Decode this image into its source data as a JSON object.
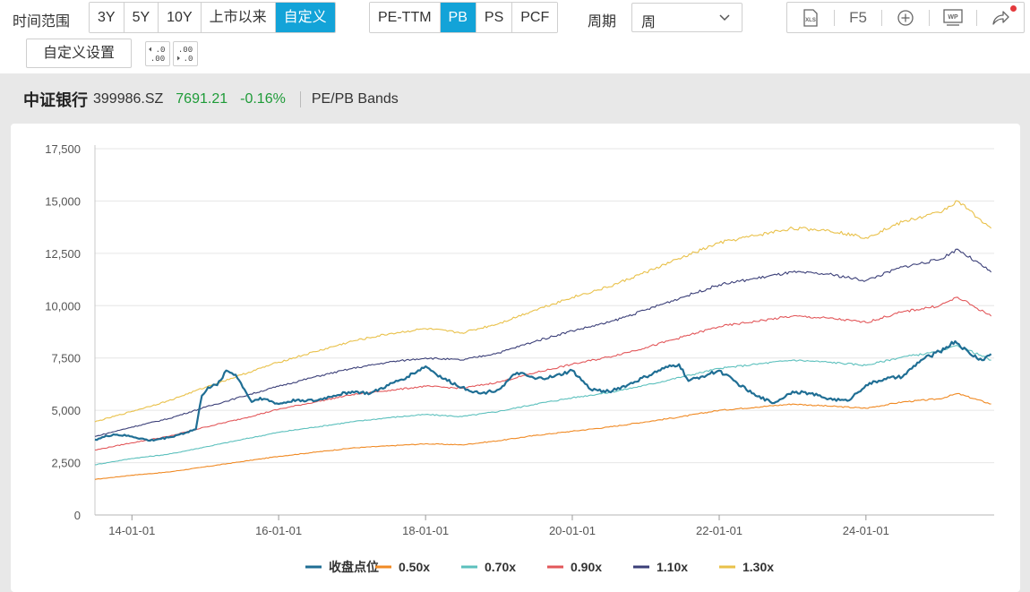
{
  "toolbar": {
    "range_label": "时间范围",
    "range_options": [
      "3Y",
      "5Y",
      "10Y",
      "上市以来",
      "自定义"
    ],
    "range_active": "自定义",
    "metric_options": [
      "PE-TTM",
      "PB",
      "PS",
      "PCF"
    ],
    "metric_active": "PB",
    "period_label": "周期",
    "period_value": "周",
    "f5_label": "F5",
    "xls_label": "XLS",
    "wp_label": "WP",
    "custom_settings_label": "自定义设置",
    "decimal_dec_label": ".00",
    "decimal_inc_label": ".00"
  },
  "header": {
    "name": "中证银行",
    "code": "399986.SZ",
    "price": "7691.21",
    "change": "-0.16%",
    "chart_type": "PE/PB Bands"
  },
  "colors": {
    "accent": "#13a3d8",
    "up_down_green": "#1e9b38",
    "close": "#1f6e94",
    "b050": "#f08a24",
    "b070": "#5cc0bd",
    "b090": "#e2575a",
    "b110": "#3b3f78",
    "b130": "#e9c14a"
  },
  "chart_data": {
    "type": "line",
    "title": "",
    "xlabel": "",
    "ylabel": "",
    "ylim": [
      0,
      17500
    ],
    "yticks": [
      0,
      2500,
      5000,
      7500,
      10000,
      12500,
      15000,
      17500
    ],
    "ytick_labels": [
      "0",
      "2,500",
      "5,000",
      "7,500",
      "10,000",
      "12,500",
      "15,000",
      "17,500"
    ],
    "xlim": [
      "2013-07-01",
      "2025-09-30"
    ],
    "xticks": [
      "2014-01-01",
      "2016-01-01",
      "2018-01-01",
      "2020-01-01",
      "2022-01-01",
      "2024-01-01"
    ],
    "xtick_labels": [
      "14-01-01",
      "16-01-01",
      "18-01-01",
      "20-01-01",
      "22-01-01",
      "24-01-01"
    ],
    "grid": "horizontal",
    "legend_position": "bottom-center",
    "series": [
      {
        "name": "收盘点位",
        "color": "#1f6e94",
        "points": [
          [
            "2013-07-01",
            3600
          ],
          [
            "2013-10-01",
            3850
          ],
          [
            "2014-01-01",
            3750
          ],
          [
            "2014-04-01",
            3550
          ],
          [
            "2014-07-01",
            3700
          ],
          [
            "2014-10-01",
            3950
          ],
          [
            "2014-11-15",
            4100
          ],
          [
            "2014-12-15",
            5700
          ],
          [
            "2015-01-15",
            6100
          ],
          [
            "2015-03-01",
            6200
          ],
          [
            "2015-04-15",
            6900
          ],
          [
            "2015-06-01",
            6700
          ],
          [
            "2015-07-15",
            6000
          ],
          [
            "2015-08-20",
            5400
          ],
          [
            "2015-10-01",
            5600
          ],
          [
            "2016-01-01",
            5300
          ],
          [
            "2016-04-01",
            5500
          ],
          [
            "2016-07-01",
            5450
          ],
          [
            "2016-10-01",
            5700
          ],
          [
            "2017-01-01",
            5900
          ],
          [
            "2017-04-01",
            5800
          ],
          [
            "2017-07-01",
            6200
          ],
          [
            "2017-10-01",
            6600
          ],
          [
            "2018-01-01",
            7100
          ],
          [
            "2018-02-15",
            6800
          ],
          [
            "2018-04-01",
            6500
          ],
          [
            "2018-07-01",
            6100
          ],
          [
            "2018-10-01",
            5800
          ],
          [
            "2019-01-01",
            6000
          ],
          [
            "2019-04-01",
            6800
          ],
          [
            "2019-07-01",
            6500
          ],
          [
            "2019-10-01",
            6600
          ],
          [
            "2020-01-01",
            6900
          ],
          [
            "2020-04-01",
            6000
          ],
          [
            "2020-07-01",
            5900
          ],
          [
            "2020-10-01",
            6200
          ],
          [
            "2021-01-01",
            6600
          ],
          [
            "2021-04-01",
            7000
          ],
          [
            "2021-06-15",
            7200
          ],
          [
            "2021-08-01",
            6400
          ],
          [
            "2021-10-01",
            6600
          ],
          [
            "2022-01-01",
            6900
          ],
          [
            "2022-04-01",
            6300
          ],
          [
            "2022-07-01",
            5700
          ],
          [
            "2022-10-01",
            5350
          ],
          [
            "2023-01-01",
            5900
          ],
          [
            "2023-04-01",
            5800
          ],
          [
            "2023-07-01",
            5550
          ],
          [
            "2023-10-01",
            5450
          ],
          [
            "2024-01-01",
            6200
          ],
          [
            "2024-04-01",
            6500
          ],
          [
            "2024-07-01",
            6600
          ],
          [
            "2024-10-01",
            7400
          ],
          [
            "2025-01-01",
            7800
          ],
          [
            "2025-03-20",
            8300
          ],
          [
            "2025-06-01",
            7700
          ],
          [
            "2025-08-01",
            7400
          ],
          [
            "2025-09-15",
            7691
          ]
        ]
      },
      {
        "name": "0.50x",
        "color": "#f08a24",
        "points": [
          [
            "2013-07-01",
            1700
          ],
          [
            "2014-01-01",
            1900
          ],
          [
            "2014-07-01",
            2050
          ],
          [
            "2015-01-01",
            2300
          ],
          [
            "2015-07-01",
            2550
          ],
          [
            "2016-01-01",
            2800
          ],
          [
            "2016-07-01",
            3000
          ],
          [
            "2017-01-01",
            3200
          ],
          [
            "2017-07-01",
            3300
          ],
          [
            "2018-01-01",
            3400
          ],
          [
            "2018-07-01",
            3350
          ],
          [
            "2019-01-01",
            3550
          ],
          [
            "2019-07-01",
            3800
          ],
          [
            "2020-01-01",
            4000
          ],
          [
            "2020-07-01",
            4200
          ],
          [
            "2021-01-01",
            4450
          ],
          [
            "2021-07-01",
            4700
          ],
          [
            "2022-01-01",
            5000
          ],
          [
            "2022-07-01",
            5150
          ],
          [
            "2023-01-01",
            5300
          ],
          [
            "2023-07-01",
            5200
          ],
          [
            "2024-01-01",
            5100
          ],
          [
            "2024-07-01",
            5400
          ],
          [
            "2025-01-01",
            5550
          ],
          [
            "2025-04-01",
            5800
          ],
          [
            "2025-09-15",
            5300
          ]
        ]
      },
      {
        "name": "0.70x",
        "color": "#5cc0bd",
        "points": [
          [
            "2013-07-01",
            2400
          ],
          [
            "2014-01-01",
            2700
          ],
          [
            "2014-07-01",
            2900
          ],
          [
            "2015-01-01",
            3250
          ],
          [
            "2015-07-01",
            3600
          ],
          [
            "2016-01-01",
            3950
          ],
          [
            "2016-07-01",
            4200
          ],
          [
            "2017-01-01",
            4450
          ],
          [
            "2017-07-01",
            4650
          ],
          [
            "2018-01-01",
            4800
          ],
          [
            "2018-07-01",
            4700
          ],
          [
            "2019-01-01",
            4950
          ],
          [
            "2019-07-01",
            5300
          ],
          [
            "2020-01-01",
            5600
          ],
          [
            "2020-07-01",
            5850
          ],
          [
            "2021-01-01",
            6200
          ],
          [
            "2021-07-01",
            6600
          ],
          [
            "2022-01-01",
            7000
          ],
          [
            "2022-07-01",
            7200
          ],
          [
            "2023-01-01",
            7400
          ],
          [
            "2023-07-01",
            7300
          ],
          [
            "2024-01-01",
            7150
          ],
          [
            "2024-07-01",
            7550
          ],
          [
            "2025-01-01",
            7800
          ],
          [
            "2025-04-01",
            8100
          ],
          [
            "2025-09-15",
            7400
          ]
        ]
      },
      {
        "name": "0.90x",
        "color": "#e2575a",
        "points": [
          [
            "2013-07-01",
            3100
          ],
          [
            "2014-01-01",
            3450
          ],
          [
            "2014-07-01",
            3750
          ],
          [
            "2015-01-01",
            4200
          ],
          [
            "2015-07-01",
            4600
          ],
          [
            "2016-01-01",
            5050
          ],
          [
            "2016-07-01",
            5400
          ],
          [
            "2017-01-01",
            5750
          ],
          [
            "2017-07-01",
            5950
          ],
          [
            "2018-01-01",
            6150
          ],
          [
            "2018-07-01",
            6050
          ],
          [
            "2019-01-01",
            6350
          ],
          [
            "2019-07-01",
            6800
          ],
          [
            "2020-01-01",
            7200
          ],
          [
            "2020-07-01",
            7550
          ],
          [
            "2021-01-01",
            8000
          ],
          [
            "2021-07-01",
            8500
          ],
          [
            "2022-01-01",
            9000
          ],
          [
            "2022-07-01",
            9250
          ],
          [
            "2023-01-01",
            9500
          ],
          [
            "2023-07-01",
            9400
          ],
          [
            "2024-01-01",
            9200
          ],
          [
            "2024-07-01",
            9700
          ],
          [
            "2025-01-01",
            10000
          ],
          [
            "2025-04-01",
            10400
          ],
          [
            "2025-09-15",
            9500
          ]
        ]
      },
      {
        "name": "1.10x",
        "color": "#3b3f78",
        "points": [
          [
            "2013-07-01",
            3750
          ],
          [
            "2014-01-01",
            4200
          ],
          [
            "2014-07-01",
            4600
          ],
          [
            "2015-01-01",
            5150
          ],
          [
            "2015-07-01",
            5650
          ],
          [
            "2016-01-01",
            6150
          ],
          [
            "2016-07-01",
            6600
          ],
          [
            "2017-01-01",
            7000
          ],
          [
            "2017-07-01",
            7300
          ],
          [
            "2018-01-01",
            7500
          ],
          [
            "2018-07-01",
            7400
          ],
          [
            "2019-01-01",
            7750
          ],
          [
            "2019-07-01",
            8300
          ],
          [
            "2020-01-01",
            8800
          ],
          [
            "2020-07-01",
            9200
          ],
          [
            "2021-01-01",
            9800
          ],
          [
            "2021-07-01",
            10400
          ],
          [
            "2022-01-01",
            11000
          ],
          [
            "2022-07-01",
            11300
          ],
          [
            "2023-01-01",
            11600
          ],
          [
            "2023-07-01",
            11500
          ],
          [
            "2024-01-01",
            11200
          ],
          [
            "2024-07-01",
            11850
          ],
          [
            "2025-01-01",
            12200
          ],
          [
            "2025-04-01",
            12700
          ],
          [
            "2025-09-15",
            11600
          ]
        ]
      },
      {
        "name": "1.30x",
        "color": "#e9c14a",
        "points": [
          [
            "2013-07-01",
            4450
          ],
          [
            "2014-01-01",
            4950
          ],
          [
            "2014-07-01",
            5450
          ],
          [
            "2015-01-01",
            6100
          ],
          [
            "2015-07-01",
            6700
          ],
          [
            "2016-01-01",
            7300
          ],
          [
            "2016-07-01",
            7800
          ],
          [
            "2017-01-01",
            8300
          ],
          [
            "2017-07-01",
            8650
          ],
          [
            "2018-01-01",
            8900
          ],
          [
            "2018-07-01",
            8700
          ],
          [
            "2019-01-01",
            9150
          ],
          [
            "2019-07-01",
            9800
          ],
          [
            "2020-01-01",
            10400
          ],
          [
            "2020-07-01",
            10900
          ],
          [
            "2021-01-01",
            11600
          ],
          [
            "2021-07-01",
            12300
          ],
          [
            "2022-01-01",
            13000
          ],
          [
            "2022-07-01",
            13350
          ],
          [
            "2023-01-01",
            13700
          ],
          [
            "2023-07-01",
            13600
          ],
          [
            "2024-01-01",
            13250
          ],
          [
            "2024-07-01",
            14000
          ],
          [
            "2025-01-01",
            14450
          ],
          [
            "2025-04-01",
            15000
          ],
          [
            "2025-09-15",
            13700
          ]
        ]
      }
    ]
  }
}
